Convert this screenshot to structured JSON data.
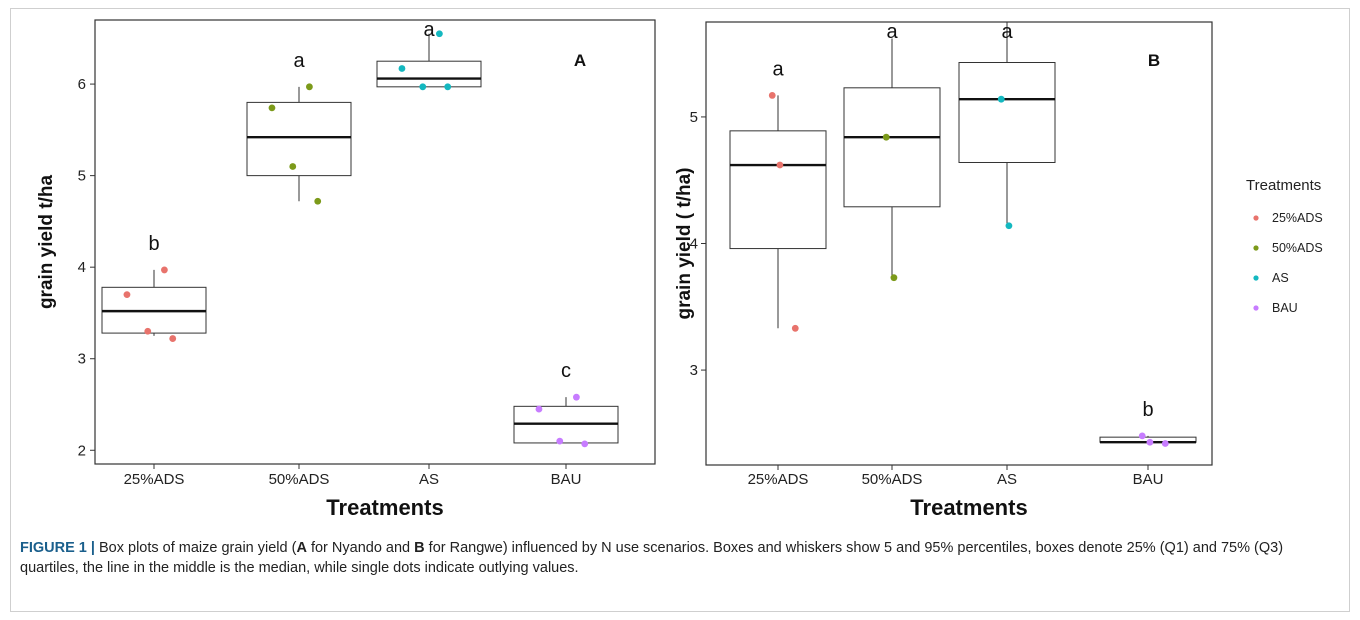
{
  "chart_data": [
    {
      "type": "box",
      "panel_label": "A",
      "xlabel": "Treatments",
      "ylabel": "grain yield t/ha",
      "ylim": [
        1.85,
        6.7
      ],
      "yticks": [
        2,
        3,
        4,
        5,
        6
      ],
      "categories": [
        "25%ADS",
        "50%ADS",
        "AS",
        "BAU"
      ],
      "boxes": [
        {
          "category": "25%ADS",
          "min": 3.25,
          "q1": 3.28,
          "median": 3.52,
          "q3": 3.78,
          "max": 3.97,
          "letter": "b",
          "points": [
            3.97,
            3.7,
            3.3,
            3.22
          ]
        },
        {
          "category": "50%ADS",
          "min": 4.72,
          "q1": 5.0,
          "median": 5.42,
          "q3": 5.8,
          "max": 5.97,
          "letter": "a",
          "points": [
            5.97,
            5.74,
            5.1,
            4.72
          ]
        },
        {
          "category": "AS",
          "min": 5.97,
          "q1": 5.97,
          "median": 6.06,
          "q3": 6.25,
          "max": 6.55,
          "letter": "a",
          "points": [
            6.55,
            6.17,
            5.97,
            5.97
          ]
        },
        {
          "category": "BAU",
          "min": 2.08,
          "q1": 2.08,
          "median": 2.29,
          "q3": 2.48,
          "max": 2.58,
          "letter": "c",
          "points": [
            2.58,
            2.45,
            2.1,
            2.07
          ]
        }
      ]
    },
    {
      "type": "box",
      "panel_label": "B",
      "xlabel": "Treatments",
      "ylabel": "grain yield ( t/ha)",
      "ylim": [
        2.25,
        5.75
      ],
      "yticks": [
        3,
        4,
        5
      ],
      "categories": [
        "25%ADS",
        "50%ADS",
        "AS",
        "BAU"
      ],
      "boxes": [
        {
          "category": "25%ADS",
          "min": 3.33,
          "q1": 3.96,
          "median": 4.62,
          "q3": 4.89,
          "max": 5.17,
          "letter": "a",
          "points": [
            5.17,
            4.62,
            3.33
          ]
        },
        {
          "category": "50%ADS",
          "min": 3.73,
          "q1": 4.29,
          "median": 4.84,
          "q3": 5.23,
          "max": 5.62,
          "letter": "a",
          "points": [
            4.84,
            3.73
          ]
        },
        {
          "category": "AS",
          "min": 4.14,
          "q1": 4.64,
          "median": 5.14,
          "q3": 5.43,
          "max": 5.75,
          "letter": "a",
          "points": [
            5.14,
            4.14
          ]
        },
        {
          "category": "BAU",
          "min": 2.43,
          "q1": 2.43,
          "median": 2.43,
          "q3": 2.47,
          "max": 2.48,
          "letter": "b",
          "points": [
            2.48,
            2.43,
            2.42
          ]
        }
      ]
    }
  ],
  "legend": {
    "title": "Treatments",
    "entries": [
      {
        "label": "25%ADS",
        "color": "#e8736c"
      },
      {
        "label": "50%ADS",
        "color": "#7c9a1a"
      },
      {
        "label": "AS",
        "color": "#14b8c0"
      },
      {
        "label": "BAU",
        "color": "#c77cff"
      }
    ]
  },
  "caption": {
    "label": "FIGURE 1 |",
    "part1": " Box plots of maize grain yield (",
    "a": "A",
    "part2": " for Nyando and ",
    "b": "B",
    "part3": " for Rangwe) influenced by N use scenarios. Boxes and whiskers show 5 and 95% percentiles, boxes denote 25% (Q1) and 75% (Q3) quartiles, the line in the middle is the median, while single dots indicate outlying values."
  }
}
